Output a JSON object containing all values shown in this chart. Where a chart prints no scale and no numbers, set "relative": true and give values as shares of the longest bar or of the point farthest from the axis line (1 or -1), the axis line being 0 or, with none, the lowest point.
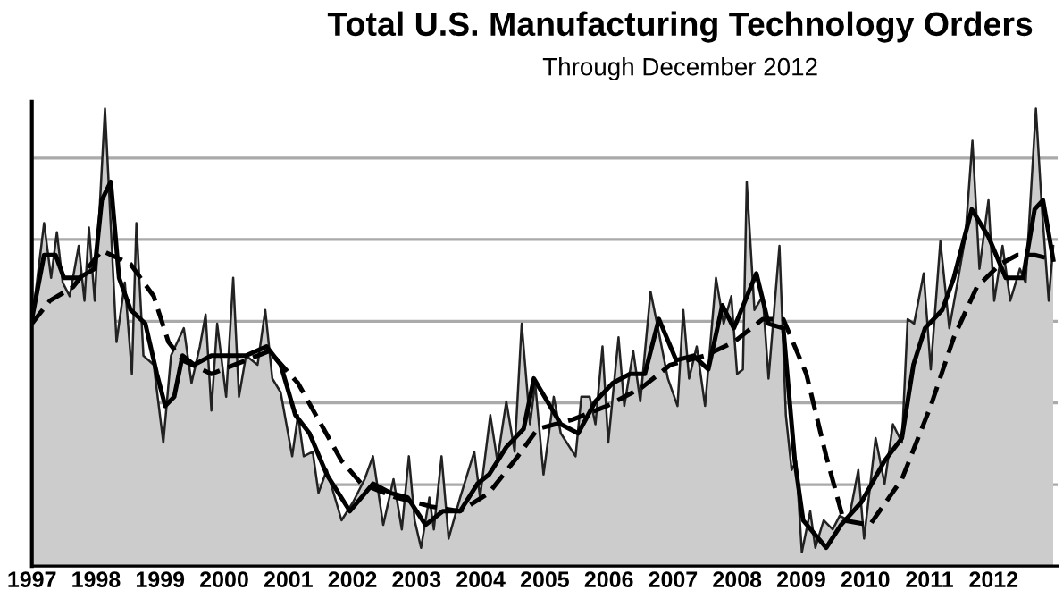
{
  "chart_data": {
    "type": "line",
    "title": "Total U.S. Manufacturing Technology Orders",
    "subtitle": "Through December 2012",
    "relative": true,
    "xlim": [
      1997,
      2013
    ],
    "xticks": [
      1997,
      1998,
      1999,
      2000,
      2001,
      2002,
      2003,
      2004,
      2005,
      2006,
      2007,
      2008,
      2009,
      2010,
      2011,
      2012
    ],
    "grid": "y",
    "legend": false,
    "series": [
      {
        "type": "area",
        "color": "#cccccc",
        "x": [
          1997.0,
          1997.19,
          1997.3,
          1997.39,
          1997.48,
          1997.59,
          1997.73,
          1997.82,
          1997.89,
          1997.98,
          1998.14,
          1998.32,
          1998.45,
          1998.56,
          1998.63,
          1998.74,
          1998.9,
          1999.05,
          1999.17,
          1999.37,
          1999.49,
          1999.62,
          1999.71,
          1999.8,
          1999.89,
          2000.03,
          2000.14,
          2000.23,
          2000.34,
          2000.52,
          2000.64,
          2000.75,
          2000.88,
          2001.06,
          2001.15,
          2001.24,
          2001.38,
          2001.47,
          2001.6,
          2001.83,
          2002.01,
          2002.19,
          2002.32,
          2002.48,
          2002.64,
          2002.77,
          2002.88,
          2002.97,
          2003.07,
          2003.2,
          2003.27,
          2003.39,
          2003.5,
          2003.68,
          2003.9,
          2003.99,
          2004.15,
          2004.26,
          2004.4,
          2004.53,
          2004.64,
          2004.77,
          2004.85,
          2004.98,
          2005.14,
          2005.25,
          2005.48,
          2005.57,
          2005.7,
          2005.79,
          2005.9,
          2005.99,
          2006.15,
          2006.24,
          2006.38,
          2006.49,
          2006.65,
          2006.78,
          2006.92,
          2007.07,
          2007.16,
          2007.25,
          2007.37,
          2007.5,
          2007.67,
          2007.79,
          2007.91,
          2008.0,
          2008.09,
          2008.15,
          2008.27,
          2008.4,
          2008.49,
          2008.66,
          2008.76,
          2008.85,
          2008.92,
          2009.01,
          2009.14,
          2009.22,
          2009.35,
          2009.49,
          2009.6,
          2009.74,
          2009.89,
          2009.98,
          2010.16,
          2010.3,
          2010.43,
          2010.57,
          2010.66,
          2010.76,
          2010.91,
          2011.02,
          2011.17,
          2011.31,
          2011.45,
          2011.56,
          2011.67,
          2011.78,
          2011.92,
          2012.01,
          2012.14,
          2012.26,
          2012.41,
          2012.5,
          2012.66,
          2012.75,
          2012.86,
          2012.93
        ],
        "values": [
          0.53,
          0.75,
          0.63,
          0.73,
          0.62,
          0.59,
          0.7,
          0.58,
          0.74,
          0.58,
          1.0,
          0.49,
          0.62,
          0.42,
          0.75,
          0.46,
          0.44,
          0.27,
          0.46,
          0.52,
          0.4,
          0.48,
          0.55,
          0.34,
          0.53,
          0.37,
          0.63,
          0.37,
          0.46,
          0.44,
          0.56,
          0.41,
          0.38,
          0.24,
          0.33,
          0.24,
          0.25,
          0.16,
          0.21,
          0.1,
          0.14,
          0.19,
          0.24,
          0.09,
          0.19,
          0.08,
          0.24,
          0.1,
          0.04,
          0.15,
          0.08,
          0.24,
          0.06,
          0.15,
          0.25,
          0.15,
          0.33,
          0.23,
          0.36,
          0.25,
          0.53,
          0.31,
          0.4,
          0.2,
          0.37,
          0.29,
          0.24,
          0.37,
          0.37,
          0.31,
          0.48,
          0.27,
          0.5,
          0.35,
          0.47,
          0.36,
          0.6,
          0.51,
          0.41,
          0.35,
          0.56,
          0.41,
          0.48,
          0.35,
          0.63,
          0.53,
          0.59,
          0.42,
          0.43,
          0.84,
          0.56,
          0.59,
          0.41,
          0.7,
          0.33,
          0.21,
          0.23,
          0.03,
          0.12,
          0.04,
          0.1,
          0.08,
          0.11,
          0.1,
          0.21,
          0.06,
          0.28,
          0.18,
          0.31,
          0.27,
          0.54,
          0.53,
          0.64,
          0.43,
          0.71,
          0.52,
          0.63,
          0.72,
          0.93,
          0.65,
          0.8,
          0.58,
          0.7,
          0.58,
          0.65,
          0.62,
          1.0,
          0.79,
          0.58,
          0.7
        ]
      },
      {
        "color": "#000000",
        "line_style": "solid",
        "x": [
          1997.0,
          1997.19,
          1997.37,
          1997.5,
          1997.73,
          1997.98,
          1998.09,
          1998.23,
          1998.36,
          1998.54,
          1998.77,
          1998.95,
          1999.08,
          1999.22,
          1999.35,
          1999.53,
          1999.8,
          2000.03,
          2000.34,
          2000.66,
          2000.88,
          2001.11,
          2001.33,
          2001.6,
          2001.96,
          2002.32,
          2002.59,
          2002.86,
          2003.14,
          2003.41,
          2003.68,
          2003.95,
          2004.13,
          2004.4,
          2004.67,
          2004.83,
          2005.25,
          2005.52,
          2005.79,
          2006.06,
          2006.33,
          2006.56,
          2006.78,
          2007.05,
          2007.32,
          2007.55,
          2007.77,
          2007.95,
          2008.3,
          2008.49,
          2008.72,
          2008.9,
          2009.03,
          2009.21,
          2009.39,
          2009.62,
          2009.94,
          2010.3,
          2010.57,
          2010.75,
          2010.93,
          2011.2,
          2011.38,
          2011.66,
          2011.92,
          2012.19,
          2012.46,
          2012.64,
          2012.77,
          2012.93
        ],
        "values": [
          0.54,
          0.68,
          0.68,
          0.63,
          0.63,
          0.65,
          0.8,
          0.84,
          0.63,
          0.56,
          0.53,
          0.42,
          0.35,
          0.37,
          0.46,
          0.44,
          0.46,
          0.46,
          0.46,
          0.48,
          0.44,
          0.33,
          0.29,
          0.2,
          0.12,
          0.18,
          0.16,
          0.15,
          0.09,
          0.12,
          0.12,
          0.18,
          0.2,
          0.26,
          0.3,
          0.41,
          0.31,
          0.29,
          0.36,
          0.4,
          0.42,
          0.42,
          0.54,
          0.45,
          0.46,
          0.43,
          0.57,
          0.52,
          0.64,
          0.53,
          0.52,
          0.23,
          0.1,
          0.07,
          0.04,
          0.09,
          0.14,
          0.23,
          0.28,
          0.44,
          0.52,
          0.56,
          0.63,
          0.78,
          0.72,
          0.63,
          0.63,
          0.78,
          0.8,
          0.67
        ]
      },
      {
        "color": "#000000",
        "line_style": "dashed",
        "x": [
          1997.0,
          1997.28,
          1997.64,
          1998.09,
          1998.54,
          1998.9,
          1999.13,
          1999.35,
          1999.8,
          2000.34,
          2000.7,
          2001.15,
          2001.51,
          2001.83,
          2002.14,
          2002.68,
          2003.23,
          2003.68,
          2004.13,
          2004.58,
          2004.89,
          2005.43,
          2005.97,
          2006.51,
          2006.96,
          2007.5,
          2007.95,
          2008.4,
          2008.72,
          2009.08,
          2009.39,
          2009.66,
          2010.07,
          2010.57,
          2011.02,
          2011.38,
          2011.74,
          2012.1,
          2012.37,
          2012.64,
          2012.93
        ],
        "values": [
          0.53,
          0.58,
          0.61,
          0.69,
          0.66,
          0.59,
          0.49,
          0.45,
          0.42,
          0.45,
          0.47,
          0.4,
          0.31,
          0.23,
          0.18,
          0.15,
          0.13,
          0.12,
          0.16,
          0.24,
          0.3,
          0.32,
          0.35,
          0.39,
          0.44,
          0.46,
          0.49,
          0.54,
          0.54,
          0.42,
          0.24,
          0.1,
          0.09,
          0.19,
          0.35,
          0.5,
          0.61,
          0.66,
          0.68,
          0.68,
          0.67
        ]
      }
    ]
  }
}
